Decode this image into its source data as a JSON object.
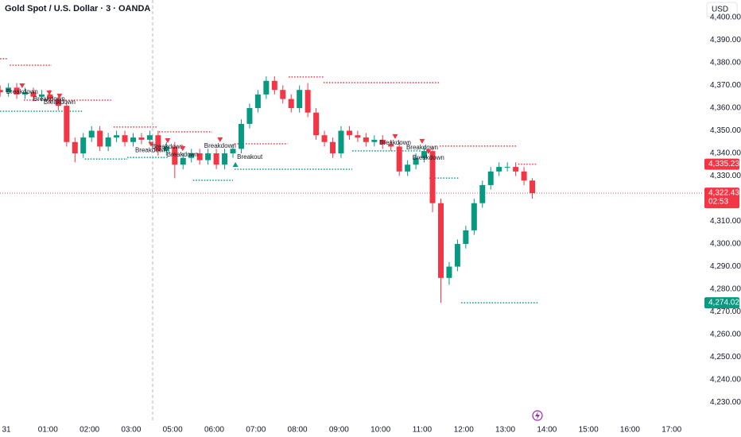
{
  "chart_data": {
    "type": "candlestick",
    "title": "Gold Spot / U.S. Dollar · 3 · OANDA",
    "currency": "USD",
    "countdown": "02:53",
    "up_color": "#089981",
    "down_color": "#f23645",
    "xlim": [
      -0.153,
      16.77
    ],
    "ylim": [
      4226,
      4407.7
    ],
    "xticks": [
      {
        "value": 0,
        "label": "31"
      },
      {
        "value": 1,
        "label": "01:00"
      },
      {
        "value": 2,
        "label": "02:00"
      },
      {
        "value": 3,
        "label": "03:00"
      },
      {
        "value": 4,
        "label": "05:00"
      },
      {
        "value": 5,
        "label": "06:00"
      },
      {
        "value": 6,
        "label": "07:00"
      },
      {
        "value": 7,
        "label": "08:00"
      },
      {
        "value": 8,
        "label": "09:00"
      },
      {
        "value": 9,
        "label": "10:00"
      },
      {
        "value": 10,
        "label": "11:00"
      },
      {
        "value": 11,
        "label": "12:00"
      },
      {
        "value": 12,
        "label": "13:00"
      },
      {
        "value": 13,
        "label": "14:00"
      },
      {
        "value": 14,
        "label": "15:00"
      },
      {
        "value": 15,
        "label": "16:00"
      },
      {
        "value": 16,
        "label": "17:00"
      }
    ],
    "yticks": [
      {
        "value": 4400,
        "label": "4,400.000"
      },
      {
        "value": 4390,
        "label": "4,390.000"
      },
      {
        "value": 4380,
        "label": "4,380.000"
      },
      {
        "value": 4370,
        "label": "4,370.000"
      },
      {
        "value": 4360,
        "label": "4,360.000"
      },
      {
        "value": 4350,
        "label": "4,350.000"
      },
      {
        "value": 4340,
        "label": "4,340.000"
      },
      {
        "value": 4330,
        "label": "4,330.000"
      },
      {
        "value": 4310,
        "label": "4,310.000"
      },
      {
        "value": 4300,
        "label": "4,300.000"
      },
      {
        "value": 4290,
        "label": "4,290.000"
      },
      {
        "value": 4280,
        "label": "4,280.000"
      },
      {
        "value": 4270,
        "label": "4,270.000"
      },
      {
        "value": 4260,
        "label": "4,260.000"
      },
      {
        "value": 4250,
        "label": "4,250.000"
      },
      {
        "value": 4240,
        "label": "4,240.000"
      },
      {
        "value": 4230,
        "label": "4,230.000"
      }
    ],
    "x": [
      -0.15,
      0.05,
      0.25,
      0.45,
      0.65,
      0.85,
      1.05,
      1.25,
      1.45,
      1.65,
      1.85,
      2.05,
      2.25,
      2.45,
      2.65,
      2.85,
      3.05,
      3.25,
      3.45,
      3.65,
      3.85,
      4.05,
      4.25,
      4.45,
      4.65,
      4.85,
      5.05,
      5.25,
      5.45,
      5.65,
      5.85,
      6.05,
      6.25,
      6.45,
      6.65,
      6.85,
      7.05,
      7.25,
      7.45,
      7.65,
      7.85,
      8.05,
      8.25,
      8.45,
      8.65,
      8.85,
      9.05,
      9.25,
      9.45,
      9.65,
      9.85,
      10.05,
      10.25,
      10.45,
      10.65,
      10.85,
      11.05,
      11.25,
      11.45,
      11.65,
      11.85,
      12.05,
      12.25,
      12.45,
      12.65
    ],
    "open": [
      4368,
      4367,
      4369,
      4366,
      4367,
      4365,
      4366,
      4364,
      4361,
      4345,
      4340,
      4347,
      4350,
      4343,
      4347,
      4348,
      4345,
      4347,
      4346,
      4348,
      4341,
      4343,
      4335,
      4338,
      4340,
      4337,
      4340,
      4335,
      4340,
      4342,
      4353,
      4360,
      4366,
      4372,
      4368,
      4364,
      4360,
      4368,
      4358,
      4348,
      4345,
      4340,
      4350,
      4348,
      4347,
      4345,
      4346,
      4344,
      4343,
      4332,
      4335,
      4338,
      4341,
      4318,
      4285,
      4290,
      4300,
      4306,
      4318,
      4326,
      4332,
      4334,
      4334,
      4332,
      4328
    ],
    "high": [
      4370,
      4371,
      4371,
      4369,
      4369,
      4368,
      4368,
      4366,
      4363,
      4347,
      4349,
      4352,
      4352,
      4349,
      4350,
      4350,
      4349,
      4349,
      4350,
      4350,
      4345,
      4345,
      4340,
      4342,
      4342,
      4342,
      4342,
      4342,
      4344,
      4355,
      4362,
      4368,
      4374,
      4374,
      4370,
      4366,
      4370,
      4371,
      4360,
      4350,
      4347,
      4352,
      4352,
      4350,
      4349,
      4348,
      4348,
      4346,
      4345,
      4337,
      4340,
      4343,
      4343,
      4320,
      4292,
      4302,
      4308,
      4320,
      4328,
      4334,
      4336,
      4336,
      4336,
      4334,
      4329
    ],
    "low": [
      4365,
      4365,
      4364,
      4364,
      4363,
      4363,
      4362,
      4359,
      4343,
      4336,
      4338,
      4345,
      4341,
      4341,
      4345,
      4343,
      4343,
      4344,
      4344,
      4339,
      4339,
      4329,
      4333,
      4336,
      4335,
      4335,
      4333,
      4333,
      4338,
      4340,
      4351,
      4358,
      4364,
      4366,
      4362,
      4358,
      4358,
      4356,
      4346,
      4343,
      4338,
      4338,
      4346,
      4345,
      4343,
      4343,
      4342,
      4341,
      4330,
      4330,
      4333,
      4336,
      4314,
      4274,
      4282,
      4288,
      4298,
      4304,
      4316,
      4324,
      4330,
      4332,
      4330,
      4326,
      4320
    ],
    "close": [
      4367,
      4369,
      4366,
      4367,
      4365,
      4366,
      4364,
      4361,
      4345,
      4340,
      4347,
      4350,
      4343,
      4347,
      4348,
      4345,
      4347,
      4346,
      4348,
      4341,
      4343,
      4335,
      4338,
      4340,
      4337,
      4340,
      4335,
      4340,
      4342,
      4353,
      4360,
      4366,
      4372,
      4368,
      4364,
      4360,
      4368,
      4358,
      4348,
      4345,
      4340,
      4350,
      4348,
      4347,
      4345,
      4346,
      4344,
      4343,
      4332,
      4335,
      4338,
      4341,
      4318,
      4285,
      4290,
      4300,
      4306,
      4318,
      4326,
      4332,
      4334,
      4334,
      4332,
      4328,
      4322.435
    ],
    "levels": [
      {
        "price": 4381.8,
        "start": -0.15,
        "end": 0.04,
        "color": "#f23645"
      },
      {
        "price": 4378.9,
        "start": 0.08,
        "end": 1.09,
        "color": "#f23645"
      },
      {
        "price": 4363.5,
        "start": 0.42,
        "end": 2.52,
        "color": "#f23645"
      },
      {
        "price": 4358.6,
        "start": -0.15,
        "end": 1.82,
        "color": "#089981"
      },
      {
        "price": 4351.6,
        "start": 2.58,
        "end": 3.63,
        "color": "#f23645"
      },
      {
        "price": 4349.5,
        "start": 3.67,
        "end": 4.95,
        "color": "#f23645"
      },
      {
        "price": 4337.5,
        "start": 1.89,
        "end": 2.91,
        "color": "#089981"
      },
      {
        "price": 4338.2,
        "start": 2.91,
        "end": 3.9,
        "color": "#089981"
      },
      {
        "price": 4344.2,
        "start": 5.49,
        "end": 6.77,
        "color": "#f23645"
      },
      {
        "price": 4333,
        "start": 5.49,
        "end": 8.32,
        "color": "#089981"
      },
      {
        "price": 4328.1,
        "start": 4.49,
        "end": 5.45,
        "color": "#089981"
      },
      {
        "price": 4373.7,
        "start": 6.79,
        "end": 7.63,
        "color": "#f23645"
      },
      {
        "price": 4371.2,
        "start": 7.63,
        "end": 10.42,
        "color": "#f23645"
      },
      {
        "price": 4341.1,
        "start": 8.32,
        "end": 9.98,
        "color": "#089981"
      },
      {
        "price": 4343.2,
        "start": 10.42,
        "end": 12.28,
        "color": "#f23645"
      },
      {
        "price": 4329.1,
        "start": 10.17,
        "end": 10.9,
        "color": "#089981"
      },
      {
        "price": 4335.23,
        "start": 12.31,
        "end": 12.77,
        "color": "#f23645"
      },
      {
        "price": 4274.025,
        "start": 10.94,
        "end": 12.79,
        "color": "#089981"
      }
    ],
    "signals": [
      {
        "label": "Breakdown",
        "x": 0.38,
        "price": 4369.8,
        "marker": "down"
      },
      {
        "label": "Breakdown",
        "x": 1.03,
        "price": 4366.7,
        "marker": "down"
      },
      {
        "label": "Breakdown",
        "x": 1.28,
        "price": 4365.3,
        "marker": "down"
      },
      {
        "label": "Breakdown",
        "x": 3.48,
        "price": 4344.0,
        "marker": "down"
      },
      {
        "label": "Breakdown",
        "x": 3.88,
        "price": 4345.6,
        "marker": "down"
      },
      {
        "label": "Breakdown",
        "x": 4.24,
        "price": 4342.1,
        "marker": "down"
      },
      {
        "label": "Breakdown",
        "x": 5.14,
        "price": 4346.0,
        "marker": "down"
      },
      {
        "label": "Breakout",
        "x": 5.51,
        "price": 4335.1,
        "marker": "up"
      },
      {
        "label": "Breakdown",
        "x": 9.35,
        "price": 4347.4,
        "marker": "down"
      },
      {
        "label": "Breakdown",
        "x": 10.0,
        "price": 4345.3,
        "marker": "down"
      },
      {
        "label": "Breakdown",
        "x": 10.15,
        "price": 4340.7,
        "marker": "down"
      }
    ],
    "price_labels": [
      {
        "value": 4335.23,
        "label": "4,335.230",
        "color": "#f23645"
      },
      {
        "value": 4274.025,
        "label": "4,274.025",
        "color": "#089981"
      }
    ],
    "last_price": {
      "value": 4322.435,
      "label": "4,322.435",
      "color": "#f23645"
    }
  }
}
